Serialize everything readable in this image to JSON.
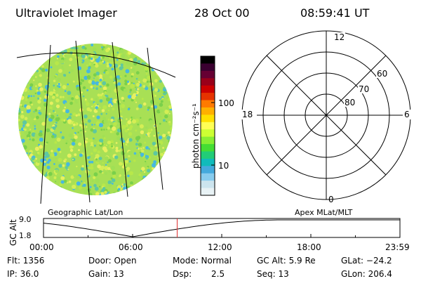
{
  "header": {
    "instrument": "Ultraviolet Imager",
    "date": "28 Oct 00",
    "time": "08:59:41 UT"
  },
  "colorbar": {
    "unit_label": "photon cm⁻²s⁻¹",
    "tick_labels": [
      "100",
      "10"
    ],
    "colors": [
      "#000000",
      "#3a0030",
      "#660033",
      "#99001a",
      "#cc0000",
      "#e63300",
      "#ff7a00",
      "#ffb000",
      "#ffe000",
      "#ffff55",
      "#ccff33",
      "#88ee33",
      "#44dd33",
      "#22cc77",
      "#11bbbb",
      "#44aadd",
      "#88ccee",
      "#cce4ee",
      "#e8f2f5"
    ]
  },
  "left_panel": {
    "caption": "Geographic Lat/Lon",
    "palette": [
      "#a0e055",
      "#d4ee55",
      "#7ad04a",
      "#5ec8a0",
      "#46b8e0",
      "#e8f060",
      "#b8e84a"
    ]
  },
  "right_panel": {
    "caption": "Apex MLat/MLT",
    "mlt_labels": {
      "top": "12",
      "left": "18",
      "right": "6",
      "bottom": "0"
    },
    "lat_labels": [
      "60",
      "70",
      "80"
    ]
  },
  "altitude_plot": {
    "ylabel": "GC Alt",
    "y_ticks": [
      "9.0",
      "1.8"
    ],
    "x_ticks": [
      "00:00",
      "06:00",
      "12:00",
      "18:00",
      "23:59"
    ],
    "marker_time_hours": 9.0,
    "line_color": "#000000",
    "marker_color": "#e03030"
  },
  "status": {
    "flt": "Flt: 1356",
    "ip": "IP: 36.0",
    "door": "Door: Open",
    "gain": "Gain: 13",
    "mode": "Mode: Normal",
    "dsp_label": "Dsp:",
    "dsp_value": "2.5",
    "gc_alt": "GC Alt: 5.9 Re",
    "seq": "Seq: 13",
    "glat": "GLat: −24.2",
    "glon": "GLon: 206.4"
  }
}
